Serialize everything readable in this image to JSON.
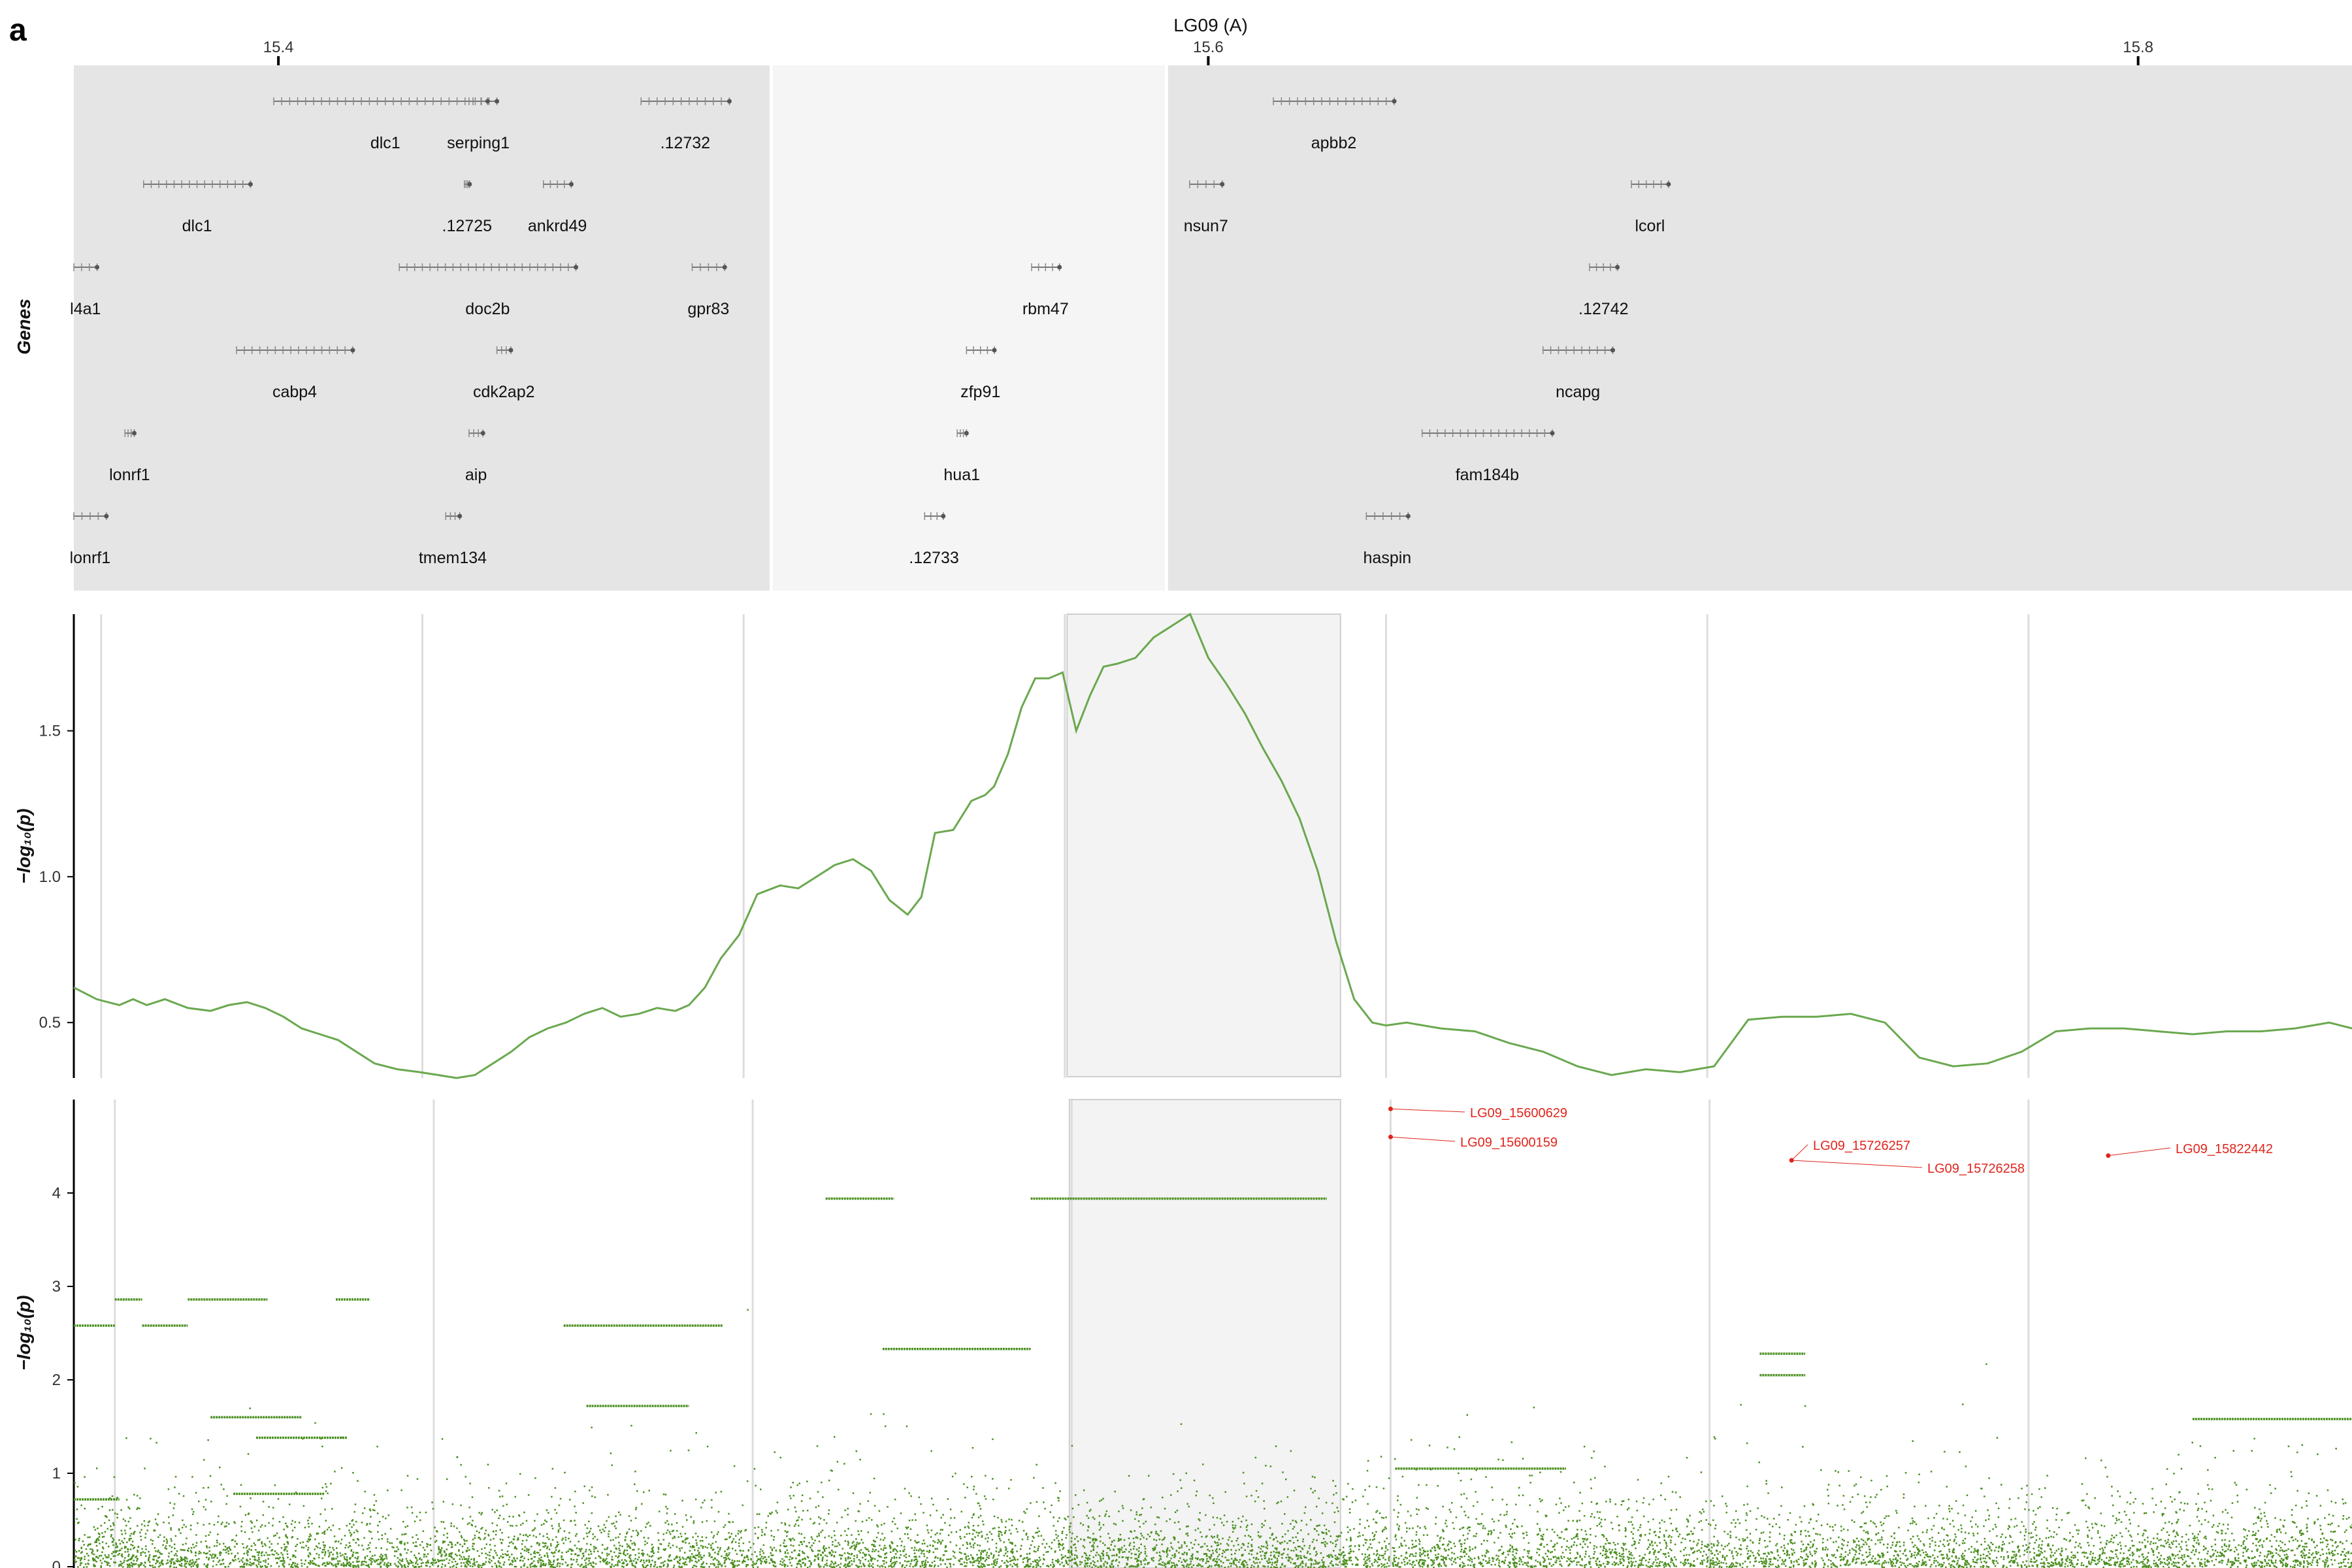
{
  "panel_letter": "a",
  "chart_data": [
    {
      "type": "gene_track",
      "title": "LG09 (A)",
      "ylabel": "Genes",
      "xlim": [
        15.356,
        15.846
      ],
      "x_ticks": [
        15.4,
        15.6,
        15.8
      ],
      "x_tick_labels": [
        "15.4",
        "15.6",
        "15.8"
      ],
      "highlight_region": [
        15.506,
        15.591
      ],
      "genes": [
        {
          "name": "dlc1",
          "row": 0,
          "start": 15.399,
          "end": 15.447
        },
        {
          "name": "serping1",
          "row": 0,
          "start": 15.441,
          "end": 15.445
        },
        {
          "name": ".12732",
          "row": 0,
          "start": 15.478,
          "end": 15.497
        },
        {
          "name": "apbb2",
          "row": 0,
          "start": 15.614,
          "end": 15.64
        },
        {
          "name": "dlc1",
          "row": 1,
          "start": 15.371,
          "end": 15.394
        },
        {
          "name": ".12725",
          "row": 1,
          "start": 15.44,
          "end": 15.441
        },
        {
          "name": "ankrd49",
          "row": 1,
          "start": 15.457,
          "end": 15.463
        },
        {
          "name": "nsun7",
          "row": 1,
          "start": 15.596,
          "end": 15.603
        },
        {
          "name": "lcorl",
          "row": 1,
          "start": 15.691,
          "end": 15.699
        },
        {
          "name": "l4a1",
          "row": 2,
          "start": 15.356,
          "end": 15.361
        },
        {
          "name": "doc2b",
          "row": 2,
          "start": 15.426,
          "end": 15.464
        },
        {
          "name": "gpr83",
          "row": 2,
          "start": 15.489,
          "end": 15.496
        },
        {
          "name": "rbm47",
          "row": 2,
          "start": 15.562,
          "end": 15.568
        },
        {
          "name": ".12742",
          "row": 2,
          "start": 15.682,
          "end": 15.688
        },
        {
          "name": "cabp4",
          "row": 3,
          "start": 15.391,
          "end": 15.416
        },
        {
          "name": "cdk2ap2",
          "row": 3,
          "start": 15.447,
          "end": 15.45
        },
        {
          "name": "zfp91",
          "row": 3,
          "start": 15.548,
          "end": 15.554
        },
        {
          "name": "ncapg",
          "row": 3,
          "start": 15.672,
          "end": 15.687
        },
        {
          "name": "lonrf1",
          "row": 4,
          "start": 15.367,
          "end": 15.369
        },
        {
          "name": "aip",
          "row": 4,
          "start": 15.441,
          "end": 15.444
        },
        {
          "name": "hua1",
          "row": 4,
          "start": 15.546,
          "end": 15.548
        },
        {
          "name": "fam184b",
          "row": 4,
          "start": 15.646,
          "end": 15.674
        },
        {
          "name": "lonrf1",
          "row": 5,
          "start": 15.356,
          "end": 15.363
        },
        {
          "name": "tmem134",
          "row": 5,
          "start": 15.436,
          "end": 15.439
        },
        {
          "name": ".12733",
          "row": 5,
          "start": 15.539,
          "end": 15.543
        },
        {
          "name": "haspin",
          "row": 5,
          "start": 15.634,
          "end": 15.643
        }
      ]
    },
    {
      "type": "line",
      "ylabel": "−log₁₀(p)",
      "ylim": [
        0.31,
        1.9
      ],
      "y_ticks": [
        0.5,
        1.0,
        1.5
      ],
      "y_tick_labels": [
        "0.5",
        "1.0",
        "1.5"
      ],
      "x": [
        0.0,
        0.01,
        0.02,
        0.026,
        0.032,
        0.04,
        0.05,
        0.06,
        0.068,
        0.076,
        0.084,
        0.092,
        0.1,
        0.108,
        0.116,
        0.124,
        0.132,
        0.142,
        0.152,
        0.16,
        0.168,
        0.176,
        0.184,
        0.192,
        0.2,
        0.208,
        0.216,
        0.224,
        0.232,
        0.24,
        0.248,
        0.256,
        0.264,
        0.27,
        0.277,
        0.284,
        0.292,
        0.3,
        0.31,
        0.318,
        0.326,
        0.334,
        0.342,
        0.35,
        0.358,
        0.366,
        0.372,
        0.378,
        0.386,
        0.394,
        0.4,
        0.404,
        0.41,
        0.416,
        0.422,
        0.428,
        0.434,
        0.44,
        0.446,
        0.452,
        0.458,
        0.466,
        0.474,
        0.482,
        0.49,
        0.498,
        0.506,
        0.514,
        0.522,
        0.53,
        0.538,
        0.546,
        0.554,
        0.562,
        0.57,
        0.576,
        0.585,
        0.6,
        0.615,
        0.63,
        0.645,
        0.66,
        0.675,
        0.69,
        0.705,
        0.72,
        0.735,
        0.75,
        0.765,
        0.78,
        0.795,
        0.81,
        0.825,
        0.84,
        0.855,
        0.87,
        0.885,
        0.9,
        0.915,
        0.93,
        0.945,
        0.96,
        0.975,
        0.99,
        1.0
      ],
      "series": [
        {
          "values": [
            0.62,
            0.58,
            0.56,
            0.58,
            0.56,
            0.58,
            0.55,
            0.54,
            0.56,
            0.57,
            0.55,
            0.52,
            0.48,
            0.46,
            0.44,
            0.4,
            0.36,
            0.34,
            0.33,
            0.32,
            0.31,
            0.32,
            0.36,
            0.4,
            0.45,
            0.48,
            0.5,
            0.53,
            0.55,
            0.52,
            0.53,
            0.55,
            0.54,
            0.56,
            0.62,
            0.72,
            0.8,
            0.94,
            0.97,
            0.96,
            1.0,
            1.04,
            1.06,
            1.02,
            0.92,
            0.87,
            0.93,
            1.15,
            1.16,
            1.26,
            1.28,
            1.31,
            1.42,
            1.58,
            1.68,
            1.68,
            1.7,
            1.5,
            1.62,
            1.72,
            1.73,
            1.75,
            1.82,
            1.86,
            1.9,
            1.75,
            1.66,
            1.56,
            1.44,
            1.33,
            1.2,
            1.02,
            0.78,
            0.58,
            0.5,
            0.49,
            0.5,
            0.48,
            0.47,
            0.43,
            0.4,
            0.35,
            0.32,
            0.34,
            0.33,
            0.35,
            0.51,
            0.52,
            0.52,
            0.53,
            0.5,
            0.38,
            0.35,
            0.36,
            0.4,
            0.47,
            0.48,
            0.48,
            0.47,
            0.46,
            0.47,
            0.47,
            0.48,
            0.5,
            0.48
          ]
        }
      ],
      "vlines": [
        0.012,
        0.153,
        0.294,
        0.435,
        0.576,
        0.717,
        0.858
      ],
      "highlight_region": [
        0.436,
        0.556
      ]
    },
    {
      "type": "scatter",
      "ylabel": "−log₁₀(p)",
      "ylim": [
        0,
        5
      ],
      "y_ticks": [
        0,
        1,
        2,
        3,
        4
      ],
      "y_tick_labels": [
        "0",
        "1",
        "2",
        "3",
        "4"
      ],
      "vlines": [
        0.018,
        0.158,
        0.298,
        0.438,
        0.578,
        0.718,
        0.858
      ],
      "highlight_region": [
        0.437,
        0.556
      ],
      "plateaus": [
        {
          "x0": 0.0,
          "x1": 0.018,
          "y": 2.58
        },
        {
          "x0": 0.018,
          "x1": 0.03,
          "y": 2.86
        },
        {
          "x0": 0.05,
          "x1": 0.085,
          "y": 2.86
        },
        {
          "x0": 0.115,
          "x1": 0.13,
          "y": 2.86
        },
        {
          "x0": 0.03,
          "x1": 0.05,
          "y": 2.58
        },
        {
          "x0": 0.06,
          "x1": 0.1,
          "y": 1.6
        },
        {
          "x0": 0.08,
          "x1": 0.12,
          "y": 1.38
        },
        {
          "x0": 0.07,
          "x1": 0.11,
          "y": 0.78
        },
        {
          "x0": 0.0,
          "x1": 0.02,
          "y": 0.72
        },
        {
          "x0": 0.215,
          "x1": 0.285,
          "y": 2.58
        },
        {
          "x0": 0.225,
          "x1": 0.27,
          "y": 1.72
        },
        {
          "x0": 0.33,
          "x1": 0.36,
          "y": 3.94
        },
        {
          "x0": 0.355,
          "x1": 0.42,
          "y": 2.33
        },
        {
          "x0": 0.42,
          "x1": 0.55,
          "y": 3.94
        },
        {
          "x0": 0.58,
          "x1": 0.655,
          "y": 1.05
        },
        {
          "x0": 0.93,
          "x1": 1.0,
          "y": 1.58
        },
        {
          "x0": 0.74,
          "x1": 0.76,
          "y": 2.28
        },
        {
          "x0": 0.74,
          "x1": 0.76,
          "y": 2.05
        }
      ],
      "highlighted_snps": [
        {
          "id": "LG09_15600629",
          "x": 0.578,
          "y": 4.9
        },
        {
          "id": "LG09_15600159",
          "x": 0.578,
          "y": 4.6
        },
        {
          "id": "LG09_15726257",
          "x": 0.754,
          "y": 4.35
        },
        {
          "id": "LG09_15726258",
          "x": 0.754,
          "y": 4.35
        },
        {
          "id": "LG09_15822442",
          "x": 0.893,
          "y": 4.4
        }
      ]
    }
  ],
  "colors": {
    "line": "#6aa84f",
    "points": "#4a8f1f",
    "snp_highlight": "#e0241b",
    "gene_panel_bg": "#e5e5e5",
    "gene_highlight_bg": "#f5f5f5",
    "shade": "#f3f3f3"
  }
}
